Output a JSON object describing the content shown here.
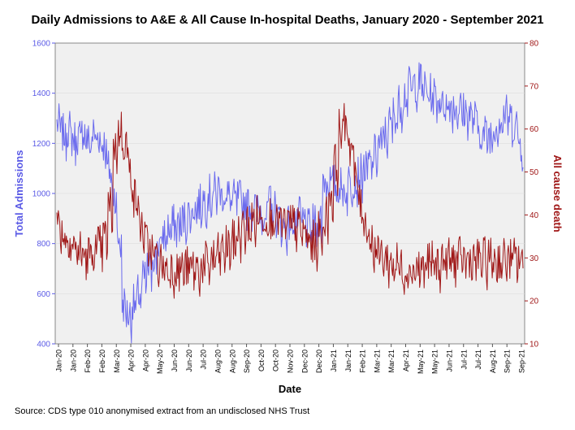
{
  "chart_data": {
    "type": "line",
    "title": "Daily Admissions to A&E & All Cause In-hospital Deaths, January 2020 - September 2021",
    "xlabel": "Date",
    "x_start": "2020-01-01",
    "x_end": "2021-09-30",
    "x_ticks": [
      "Jan-20",
      "Jan-20",
      "Feb-20",
      "Feb-20",
      "Mar-20",
      "Apr-20",
      "Apr-20",
      "May-20",
      "Jun-20",
      "Jun-20",
      "Jul-20",
      "Aug-20",
      "Aug-20",
      "Sep-20",
      "Oct-20",
      "Oct-20",
      "Nov-20",
      "Dec-20",
      "Dec-20",
      "Jan-21",
      "Jan-21",
      "Feb-21",
      "Mar-21",
      "Mar-21",
      "Apr-21",
      "May-21",
      "May-21",
      "Jun-21",
      "Jul-21",
      "Jul-21",
      "Aug-21",
      "Sep-21",
      "Sep-21"
    ],
    "y_left": {
      "label": "Total Admissions",
      "range": [
        400,
        1600
      ],
      "ticks": [
        "400",
        "600",
        "800",
        "1000",
        "1200",
        "1400",
        "1600"
      ],
      "color": "#5a5ae6"
    },
    "y_right": {
      "label": "All cause death",
      "range": [
        10,
        80
      ],
      "ticks": [
        "10",
        "20",
        "30",
        "40",
        "50",
        "60",
        "70",
        "80"
      ],
      "color": "#a01818"
    },
    "series": [
      {
        "name": "Total Admissions",
        "axis": "left",
        "color": "#6a6aee",
        "points_per_week": 7,
        "weekly_values": [
          1280,
          1240,
          1260,
          1220,
          1230,
          1250,
          1210,
          1240,
          1230,
          1200,
          1100,
          1000,
          820,
          560,
          520,
          560,
          600,
          660,
          700,
          760,
          800,
          840,
          860,
          880,
          880,
          900,
          920,
          950,
          960,
          980,
          1000,
          1010,
          1020,
          1000,
          990,
          980,
          980,
          970,
          960,
          950,
          940,
          930,
          960,
          940,
          900,
          870,
          880,
          900,
          910,
          890,
          860,
          880,
          900,
          1060,
          1050,
          1040,
          1030,
          1020,
          1050,
          1060,
          1080,
          1100,
          1120,
          1160,
          1200,
          1240,
          1280,
          1320,
          1360,
          1400,
          1430,
          1440,
          1450,
          1420,
          1400,
          1390,
          1380,
          1360,
          1360,
          1350,
          1340,
          1330,
          1320,
          1300,
          1250,
          1240,
          1240,
          1280,
          1300,
          1320,
          1300,
          1280,
          1200
        ],
        "amplitude": 80
      },
      {
        "name": "All cause death",
        "axis": "right",
        "color": "#a01818",
        "points_per_week": 7,
        "weekly_values": [
          38,
          36,
          35,
          33,
          32,
          31,
          31,
          32,
          33,
          35,
          42,
          56,
          60,
          57,
          50,
          44,
          38,
          34,
          32,
          30,
          29,
          28,
          28,
          28,
          28,
          28,
          28,
          28,
          28,
          29,
          30,
          31,
          32,
          33,
          34,
          36,
          37,
          38,
          39,
          40,
          40,
          40,
          40,
          39,
          38,
          38,
          38,
          37,
          36,
          34,
          34,
          36,
          40,
          45,
          52,
          60,
          62,
          56,
          48,
          42,
          38,
          34,
          32,
          31,
          30,
          29,
          29,
          28,
          28,
          28,
          28,
          28,
          29,
          29,
          29,
          30,
          30,
          30,
          30,
          30,
          30,
          30,
          30,
          30,
          30,
          30,
          30,
          30,
          30,
          30,
          30
        ],
        "amplitude": 5
      }
    ]
  },
  "source_note": "Source: CDS type 010 anonymised extract from an undisclosed NHS Trust"
}
